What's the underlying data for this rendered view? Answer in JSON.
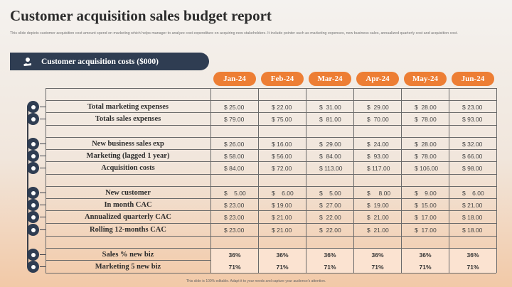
{
  "title": "Customer acquisition sales budget report",
  "subtitle": "This slide depicts customer acquisition cost amount spend on marketing which helps manager to analyze cost expenditure on acquiring new stakeholders. It include pointer such as marketing expenses, new business sales, annualized quarterly cost and acquisition cost.",
  "banner": {
    "label": "Customer acquisition costs ($000)",
    "icon": "money-hand-icon"
  },
  "months": [
    "Jan-24",
    "Feb-24",
    "Mar-24",
    "Apr-24",
    "May-24",
    "Jun-24"
  ],
  "rows": [
    {
      "label": "Total marketing expenses",
      "values": [
        "$ 25.00",
        "$ 22.00",
        "$  31.00",
        "$  29.00",
        "$  28.00",
        "$ 23.00"
      ],
      "icon": "gauge-icon"
    },
    {
      "label": "Totals sales expenses",
      "values": [
        "$ 79.00",
        "$ 75.00",
        "$  81.00",
        "$  70.00",
        "$  78.00",
        "$ 93.00"
      ],
      "icon": "chart-icon"
    },
    {
      "label": "New business sales exp",
      "values": [
        "$ 26.00",
        "$ 16.00",
        "$  29.00",
        "$  24.00",
        "$  28.00",
        "$ 32.00"
      ],
      "icon": "briefcase-icon"
    },
    {
      "label": "Marketing (lagged 1 year)",
      "values": [
        "$ 58.00",
        "$ 56.00",
        "$  84.00",
        "$  93.00",
        "$  78.00",
        "$ 66.00"
      ],
      "icon": "megaphone-icon"
    },
    {
      "label": "Acquisition costs",
      "values": [
        "$ 84.00",
        "$ 72.00",
        "$ 113.00",
        "$ 117.00",
        "$ 106.00",
        "$ 98.00"
      ],
      "icon": "coins-icon"
    },
    {
      "label": "New customer",
      "values": [
        "$    5.00",
        "$    6.00",
        "$    5.00",
        "$     8.00",
        "$    9.00",
        "$    6.00"
      ],
      "icon": "user-icon"
    },
    {
      "label": "In month CAC",
      "values": [
        "$ 23.00",
        "$ 19.00",
        "$  27.00",
        "$  19.00",
        "$  15.00",
        "$ 21.00"
      ],
      "icon": "calendar-icon"
    },
    {
      "label": "Annualized quarterly CAC",
      "values": [
        "$ 23.00",
        "$ 21.00",
        "$  22.00",
        "$  21.00",
        "$  17.00",
        "$ 18.00"
      ],
      "icon": "target-icon"
    },
    {
      "label": "Rolling 12-months CAC",
      "values": [
        "$ 23.00",
        "$ 21.00",
        "$  22.00",
        "$  21.00",
        "$  17.00",
        "$ 18.00"
      ],
      "icon": "refresh-icon"
    }
  ],
  "pct_rows": [
    {
      "label": "Sales % new biz",
      "values": [
        "36%",
        "36%",
        "36%",
        "36%",
        "36%",
        "36%"
      ],
      "icon": "percent-icon"
    },
    {
      "label": "Marketing 5 new biz",
      "values": [
        "71%",
        "71%",
        "71%",
        "71%",
        "71%",
        "71%"
      ],
      "icon": "trophy-icon"
    }
  ],
  "footer": "This slide is 100% editable. Adapt it to your needs and capture your audience's attention.",
  "colors": {
    "accent": "#ed7e34",
    "navy": "#2f3d52"
  }
}
